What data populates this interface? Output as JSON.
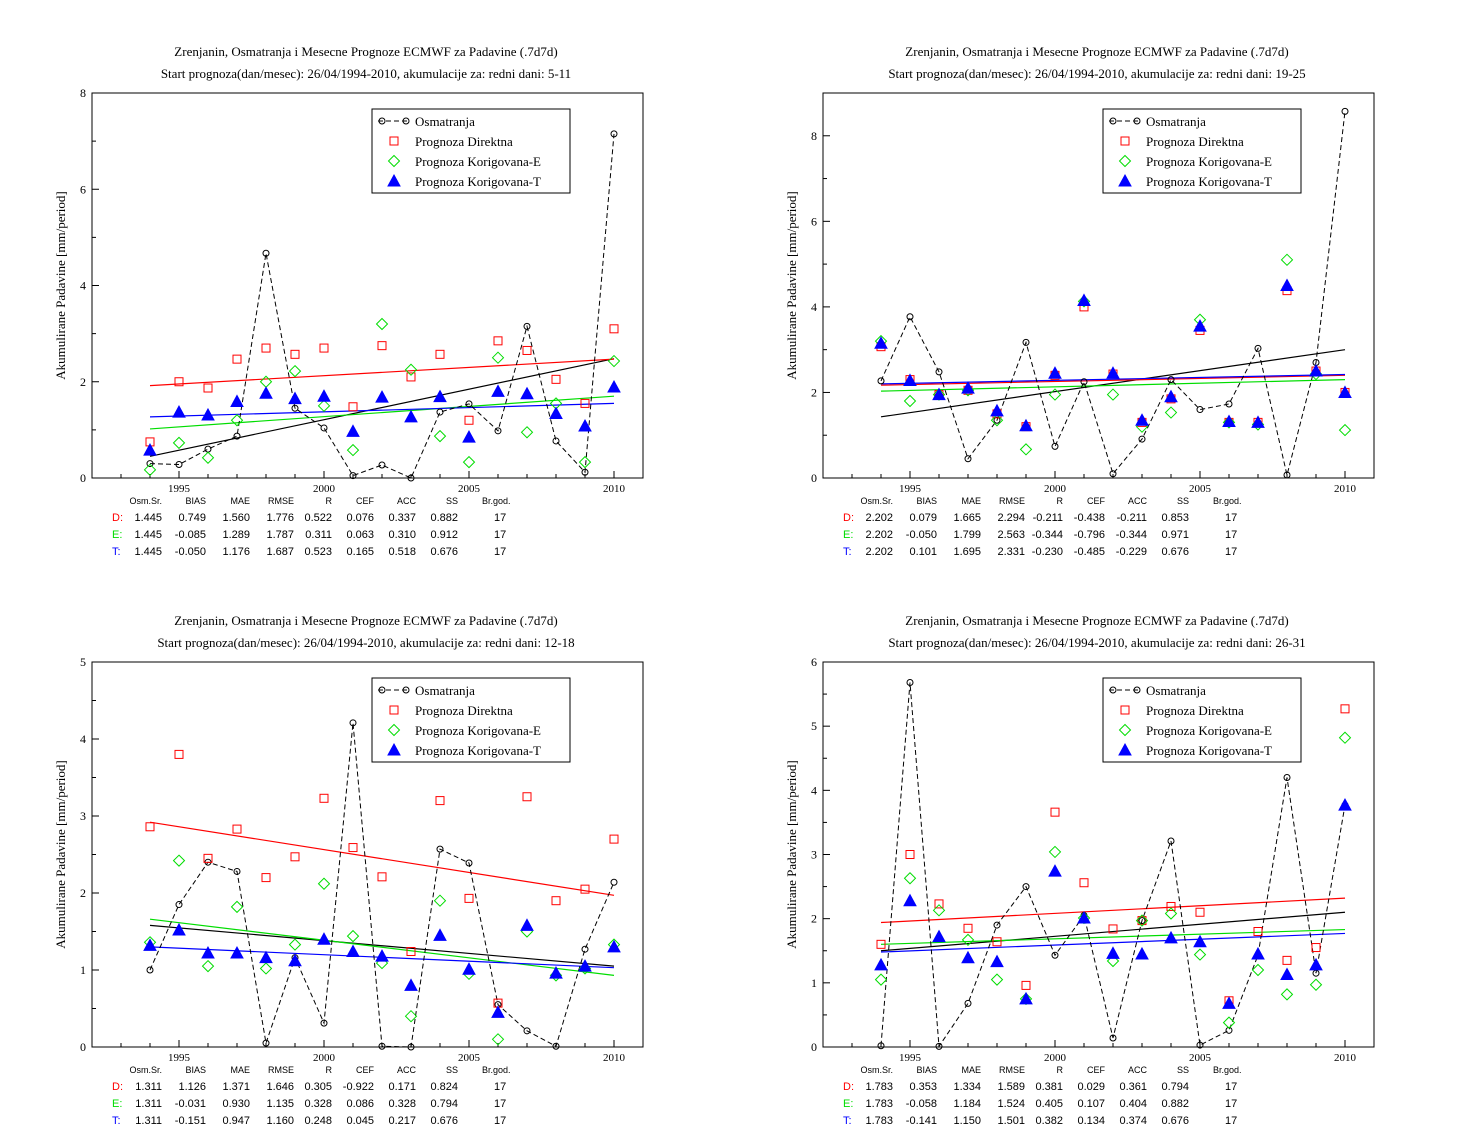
{
  "legend_labels": {
    "obs": "Osmatranja",
    "direct": "Prognoza Direktna",
    "corrE": "Prognoza Korigovana-E",
    "corrT": "Prognoza Korigovana-T"
  },
  "series_colors": {
    "obs": "#000000",
    "direct": "#ff0000",
    "corrE": "#00dd00",
    "corrT": "#0000ff"
  },
  "stats_headers": [
    "Osm.Sr.",
    "BIAS",
    "MAE",
    "RMSE",
    "R",
    "CEF",
    "ACC",
    "SS",
    "Br.god."
  ],
  "chart_data": [
    {
      "type": "scatter",
      "title": "Zrenjanin, Osmatranja i Mesecne Prognoze ECMWF za Padavine (.7d7d)",
      "subtitle": "Start prognoza(dan/mesec): 26/04/1994-2010, akumulacije za: redni dani: 5-11",
      "ylabel": "Akumulirane Padavine [mm/period]",
      "xlim": [
        1992,
        2011
      ],
      "ylim": [
        0,
        8
      ],
      "yticks": [
        0,
        2,
        4,
        6,
        8
      ],
      "xticks": [
        1995,
        2000,
        2005,
        2010
      ],
      "x": [
        1994,
        1995,
        1996,
        1997,
        1998,
        1999,
        2000,
        2001,
        2002,
        2003,
        2004,
        2005,
        2006,
        2007,
        2008,
        2009,
        2010
      ],
      "series": [
        {
          "key": "obs",
          "values": [
            0.3,
            0.28,
            0.6,
            0.87,
            4.67,
            1.45,
            1.04,
            0.05,
            0.27,
            0.0,
            1.37,
            1.54,
            0.98,
            3.15,
            0.77,
            0.12,
            7.15
          ],
          "trend": [
            0.45,
            2.48
          ]
        },
        {
          "key": "direct",
          "values": [
            0.75,
            2.0,
            1.87,
            2.47,
            2.7,
            2.57,
            2.7,
            1.48,
            2.75,
            2.1,
            2.57,
            1.2,
            2.85,
            2.65,
            2.05,
            1.55,
            3.1
          ],
          "trend": [
            1.92,
            2.47
          ]
        },
        {
          "key": "corrE",
          "values": [
            0.17,
            0.73,
            0.42,
            1.2,
            2.0,
            2.22,
            1.5,
            0.58,
            3.2,
            2.25,
            0.87,
            0.33,
            2.5,
            0.95,
            1.55,
            0.33,
            2.43
          ],
          "trend": [
            1.02,
            1.7
          ]
        },
        {
          "key": "corrT",
          "values": [
            0.58,
            1.37,
            1.31,
            1.59,
            1.76,
            1.65,
            1.7,
            0.97,
            1.68,
            1.27,
            1.69,
            0.85,
            1.8,
            1.75,
            1.34,
            1.08,
            1.89
          ],
          "trend": [
            1.27,
            1.55
          ]
        }
      ],
      "stats": [
        {
          "label": "D:",
          "key": "direct",
          "values": [
            "1.445",
            "0.749",
            "1.560",
            "1.776",
            "0.522",
            "0.076",
            "0.337",
            "0.882",
            "17"
          ]
        },
        {
          "label": "E:",
          "key": "corrE",
          "values": [
            "1.445",
            "-0.085",
            "1.289",
            "1.787",
            "0.311",
            "0.063",
            "0.310",
            "0.912",
            "17"
          ]
        },
        {
          "label": "T:",
          "key": "corrT",
          "values": [
            "1.445",
            "-0.050",
            "1.176",
            "1.687",
            "0.523",
            "0.165",
            "0.518",
            "0.676",
            "17"
          ]
        }
      ]
    },
    {
      "type": "scatter",
      "title": "Zrenjanin, Osmatranja i Mesecne Prognoze ECMWF za Padavine (.7d7d)",
      "subtitle": "Start prognoza(dan/mesec): 26/04/1994-2010, akumulacije za: redni dani: 19-25",
      "ylabel": "Akumulirane Padavine [mm/period]",
      "xlim": [
        1992,
        2011
      ],
      "ylim": [
        0,
        9
      ],
      "yticks": [
        0,
        2,
        4,
        6,
        8
      ],
      "xticks": [
        1995,
        2000,
        2005,
        2010
      ],
      "x": [
        1994,
        1995,
        1996,
        1997,
        1998,
        1999,
        2000,
        2001,
        2002,
        2003,
        2004,
        2005,
        2006,
        2007,
        2008,
        2009,
        2010
      ],
      "series": [
        {
          "key": "obs",
          "values": [
            2.27,
            3.77,
            2.48,
            0.45,
            1.35,
            3.17,
            0.74,
            2.25,
            0.1,
            0.91,
            2.3,
            1.6,
            1.73,
            3.03,
            0.07,
            2.7,
            8.57
          ],
          "trend": [
            1.43,
            3.0
          ]
        },
        {
          "key": "direct",
          "values": [
            3.07,
            2.3,
            1.95,
            2.05,
            1.5,
            1.2,
            2.4,
            4.0,
            2.43,
            1.3,
            1.85,
            3.45,
            1.3,
            1.3,
            4.38,
            2.5,
            2.0
          ],
          "trend": [
            2.17,
            2.4
          ]
        },
        {
          "key": "corrE",
          "values": [
            3.2,
            1.8,
            1.95,
            2.05,
            1.35,
            0.67,
            1.95,
            4.13,
            1.95,
            1.2,
            1.53,
            3.7,
            1.3,
            1.25,
            5.1,
            2.43,
            1.12
          ],
          "trend": [
            2.03,
            2.3
          ]
        },
        {
          "key": "corrT",
          "values": [
            3.15,
            2.28,
            1.95,
            2.1,
            1.57,
            1.22,
            2.45,
            4.15,
            2.45,
            1.35,
            1.9,
            3.55,
            1.32,
            1.3,
            4.5,
            2.5,
            2.0
          ],
          "trend": [
            2.2,
            2.42
          ]
        }
      ],
      "stats": [
        {
          "label": "D:",
          "key": "direct",
          "values": [
            "2.202",
            "0.079",
            "1.665",
            "2.294",
            "-0.211",
            "-0.438",
            "-0.211",
            "0.853",
            "17"
          ]
        },
        {
          "label": "E:",
          "key": "corrE",
          "values": [
            "2.202",
            "-0.050",
            "1.799",
            "2.563",
            "-0.344",
            "-0.796",
            "-0.344",
            "0.971",
            "17"
          ]
        },
        {
          "label": "T:",
          "key": "corrT",
          "values": [
            "2.202",
            "0.101",
            "1.695",
            "2.331",
            "-0.230",
            "-0.485",
            "-0.229",
            "0.676",
            "17"
          ]
        }
      ]
    },
    {
      "type": "scatter",
      "title": "Zrenjanin, Osmatranja i Mesecne Prognoze ECMWF za Padavine (.7d7d)",
      "subtitle": "Start prognoza(dan/mesec): 26/04/1994-2010, akumulacije za: redni dani: 12-18",
      "ylabel": "Akumulirane Padavine [mm/period]",
      "xlim": [
        1992,
        2011
      ],
      "ylim": [
        0,
        5
      ],
      "yticks": [
        0,
        1,
        2,
        3,
        4,
        5
      ],
      "xticks": [
        1995,
        2000,
        2005,
        2010
      ],
      "x": [
        1994,
        1995,
        1996,
        1997,
        1998,
        1999,
        2000,
        2001,
        2002,
        2003,
        2004,
        2005,
        2006,
        2007,
        2008,
        2009,
        2010
      ],
      "series": [
        {
          "key": "obs",
          "values": [
            1.0,
            1.85,
            2.4,
            2.28,
            0.05,
            1.16,
            0.31,
            4.21,
            0.01,
            0.0,
            2.57,
            2.39,
            0.55,
            0.21,
            0.01,
            1.27,
            2.14
          ],
          "trend": [
            1.58,
            1.05
          ]
        },
        {
          "key": "direct",
          "values": [
            2.86,
            3.8,
            2.45,
            2.83,
            2.2,
            2.47,
            3.23,
            2.59,
            2.21,
            1.24,
            3.2,
            1.93,
            0.57,
            3.25,
            1.9,
            2.05,
            2.7
          ],
          "trend": [
            2.92,
            1.97
          ]
        },
        {
          "key": "corrE",
          "values": [
            1.36,
            2.42,
            1.05,
            1.82,
            1.02,
            1.33,
            2.12,
            1.44,
            1.09,
            0.4,
            1.9,
            0.95,
            0.1,
            1.5,
            0.93,
            1.02,
            1.33
          ],
          "trend": [
            1.66,
            0.93
          ]
        },
        {
          "key": "corrT",
          "values": [
            1.32,
            1.52,
            1.22,
            1.22,
            1.16,
            1.12,
            1.4,
            1.24,
            1.18,
            0.8,
            1.45,
            1.01,
            0.45,
            1.58,
            0.96,
            1.05,
            1.3
          ],
          "trend": [
            1.3,
            1.03
          ]
        }
      ],
      "stats": [
        {
          "label": "D:",
          "key": "direct",
          "values": [
            "1.311",
            "1.126",
            "1.371",
            "1.646",
            "0.305",
            "-0.922",
            "0.171",
            "0.824",
            "17"
          ]
        },
        {
          "label": "E:",
          "key": "corrE",
          "values": [
            "1.311",
            "-0.031",
            "0.930",
            "1.135",
            "0.328",
            "0.086",
            "0.328",
            "0.794",
            "17"
          ]
        },
        {
          "label": "T:",
          "key": "corrT",
          "values": [
            "1.311",
            "-0.151",
            "0.947",
            "1.160",
            "0.248",
            "0.045",
            "0.217",
            "0.676",
            "17"
          ]
        }
      ]
    },
    {
      "type": "scatter",
      "title": "Zrenjanin, Osmatranja i Mesecne Prognoze ECMWF za Padavine (.7d7d)",
      "subtitle": "Start prognoza(dan/mesec): 26/04/1994-2010, akumulacije za: redni dani: 26-31",
      "ylabel": "Akumulirane Padavine [mm/period]",
      "xlim": [
        1992,
        2011
      ],
      "ylim": [
        0,
        6
      ],
      "yticks": [
        0,
        1,
        2,
        3,
        4,
        5,
        6
      ],
      "xticks": [
        1995,
        2000,
        2005,
        2010
      ],
      "x": [
        1994,
        1995,
        1996,
        1997,
        1998,
        1999,
        2000,
        2001,
        2002,
        2003,
        2004,
        2005,
        2006,
        2007,
        2008,
        2009,
        2010
      ],
      "series": [
        {
          "key": "obs",
          "values": [
            0.02,
            5.68,
            0.01,
            0.68,
            1.9,
            2.5,
            1.43,
            2.05,
            0.14,
            1.97,
            3.21,
            0.03,
            0.26,
            1.43,
            4.2,
            1.15,
            3.77
          ],
          "trend": [
            1.5,
            2.1
          ]
        },
        {
          "key": "direct",
          "values": [
            1.6,
            3.0,
            2.23,
            1.85,
            1.64,
            0.96,
            3.66,
            2.56,
            1.84,
            1.97,
            2.19,
            2.1,
            0.72,
            1.8,
            1.35,
            1.55,
            5.27
          ],
          "trend": [
            1.94,
            2.32
          ]
        },
        {
          "key": "corrE",
          "values": [
            1.05,
            2.63,
            2.13,
            1.67,
            1.05,
            0.75,
            3.04,
            2.01,
            1.34,
            1.97,
            2.08,
            1.44,
            0.38,
            1.2,
            0.82,
            0.97,
            4.82
          ],
          "trend": [
            1.6,
            1.83
          ]
        },
        {
          "key": "corrT",
          "values": [
            1.28,
            2.28,
            1.72,
            1.39,
            1.33,
            0.75,
            2.74,
            2.01,
            1.46,
            1.45,
            1.7,
            1.64,
            0.68,
            1.45,
            1.13,
            1.28,
            3.77
          ],
          "trend": [
            1.48,
            1.77
          ]
        }
      ],
      "stats": [
        {
          "label": "D:",
          "key": "direct",
          "values": [
            "1.783",
            "0.353",
            "1.334",
            "1.589",
            "0.381",
            "0.029",
            "0.361",
            "0.794",
            "17"
          ]
        },
        {
          "label": "E:",
          "key": "corrE",
          "values": [
            "1.783",
            "-0.058",
            "1.184",
            "1.524",
            "0.405",
            "0.107",
            "0.404",
            "0.882",
            "17"
          ]
        },
        {
          "label": "T:",
          "key": "corrT",
          "values": [
            "1.783",
            "-0.141",
            "1.150",
            "1.501",
            "0.382",
            "0.134",
            "0.374",
            "0.676",
            "17"
          ]
        }
      ]
    }
  ]
}
